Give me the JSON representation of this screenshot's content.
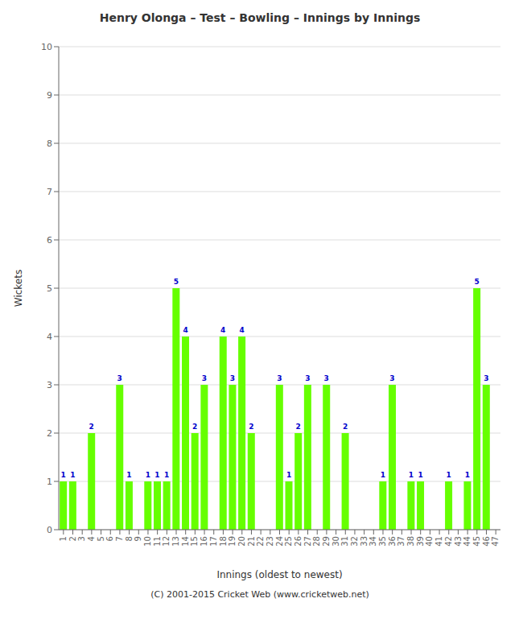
{
  "chart_data": {
    "type": "bar",
    "title": "Henry Olonga – Test – Bowling – Innings by Innings",
    "xlabel": "Innings (oldest to newest)",
    "ylabel": "Wickets",
    "categories": [
      "1",
      "2",
      "3",
      "4",
      "5",
      "6",
      "7",
      "8",
      "9",
      "10",
      "11",
      "12",
      "13",
      "14",
      "15",
      "16",
      "17",
      "18",
      "19",
      "20",
      "21",
      "22",
      "23",
      "24",
      "25",
      "26",
      "27",
      "28",
      "29",
      "30",
      "31",
      "32",
      "33",
      "34",
      "35",
      "36",
      "37",
      "38",
      "39",
      "40",
      "41",
      "42",
      "43",
      "44",
      "45",
      "46",
      "47"
    ],
    "values": [
      1,
      1,
      0,
      2,
      0,
      0,
      3,
      1,
      0,
      1,
      1,
      1,
      5,
      4,
      2,
      3,
      0,
      4,
      3,
      4,
      2,
      0,
      0,
      3,
      1,
      2,
      3,
      0,
      3,
      0,
      2,
      0,
      0,
      0,
      1,
      3,
      0,
      1,
      1,
      0,
      0,
      1,
      0,
      1,
      5,
      3,
      0
    ],
    "color": "#66ff00",
    "ylim": [
      0,
      10
    ],
    "yticks": [
      0,
      1,
      2,
      3,
      4,
      5,
      6,
      7,
      8,
      9,
      10
    ],
    "grid": true,
    "data_labels": true,
    "annotations": [
      "(C) 2001-2015 Cricket Web (www.cricketweb.net)"
    ]
  }
}
